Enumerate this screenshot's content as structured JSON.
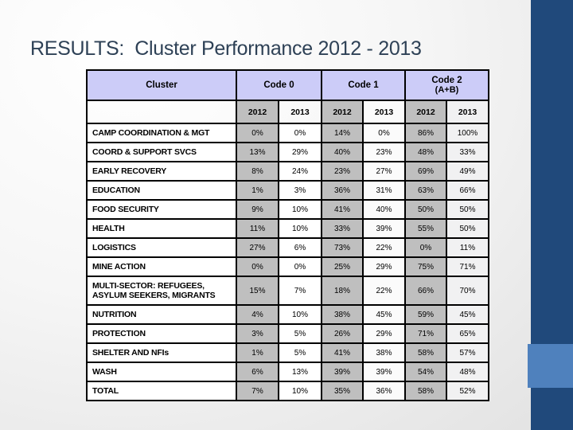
{
  "slide": {
    "title": "RESULTS:  Cluster Performance 2012 - 2013"
  },
  "table": {
    "header": {
      "cluster_label": "Cluster",
      "groups": [
        {
          "label": "Code 0",
          "sublabel": ""
        },
        {
          "label": "Code 1",
          "sublabel": ""
        },
        {
          "label": "Code 2",
          "sublabel": "(A+B)"
        }
      ],
      "years": [
        "2012",
        "2013",
        "2012",
        "2013",
        "2012",
        "2013"
      ]
    },
    "rows": [
      {
        "cluster": "CAMP COORDINATION & MGT",
        "values": [
          "0%",
          "0%",
          "14%",
          "0%",
          "86%",
          "100%"
        ]
      },
      {
        "cluster": "COORD & SUPPORT SVCS",
        "values": [
          "13%",
          "29%",
          "40%",
          "23%",
          "48%",
          "33%"
        ]
      },
      {
        "cluster": "EARLY RECOVERY",
        "values": [
          "8%",
          "24%",
          "23%",
          "27%",
          "69%",
          "49%"
        ]
      },
      {
        "cluster": "EDUCATION",
        "values": [
          "1%",
          "3%",
          "36%",
          "31%",
          "63%",
          "66%"
        ]
      },
      {
        "cluster": "FOOD SECURITY",
        "values": [
          "9%",
          "10%",
          "41%",
          "40%",
          "50%",
          "50%"
        ]
      },
      {
        "cluster": "HEALTH",
        "values": [
          "11%",
          "10%",
          "33%",
          "39%",
          "55%",
          "50%"
        ]
      },
      {
        "cluster": "LOGISTICS",
        "values": [
          "27%",
          "6%",
          "73%",
          "22%",
          "0%",
          "11%"
        ]
      },
      {
        "cluster": "MINE ACTION",
        "values": [
          "0%",
          "0%",
          "25%",
          "29%",
          "75%",
          "71%"
        ]
      },
      {
        "cluster": "MULTI-SECTOR: REFUGEES, ASYLUM SEEKERS, MIGRANTS",
        "values": [
          "15%",
          "7%",
          "18%",
          "22%",
          "66%",
          "70%"
        ]
      },
      {
        "cluster": "NUTRITION",
        "values": [
          "4%",
          "10%",
          "38%",
          "45%",
          "59%",
          "45%"
        ]
      },
      {
        "cluster": "PROTECTION",
        "values": [
          "3%",
          "5%",
          "26%",
          "29%",
          "71%",
          "65%"
        ]
      },
      {
        "cluster": "SHELTER AND NFIs",
        "values": [
          "1%",
          "5%",
          "41%",
          "38%",
          "58%",
          "57%"
        ]
      },
      {
        "cluster": "WASH",
        "values": [
          "6%",
          "13%",
          "39%",
          "39%",
          "54%",
          "48%"
        ]
      },
      {
        "cluster": "TOTAL",
        "values": [
          "7%",
          "10%",
          "35%",
          "36%",
          "58%",
          "52%"
        ]
      }
    ]
  },
  "colors": {
    "header_fill": "#CCCCF8",
    "gray_fill": "#BFBFBF",
    "title_text": "#2E4156",
    "accent_bar": "#20497B",
    "accent_square": "#4F81BD"
  }
}
